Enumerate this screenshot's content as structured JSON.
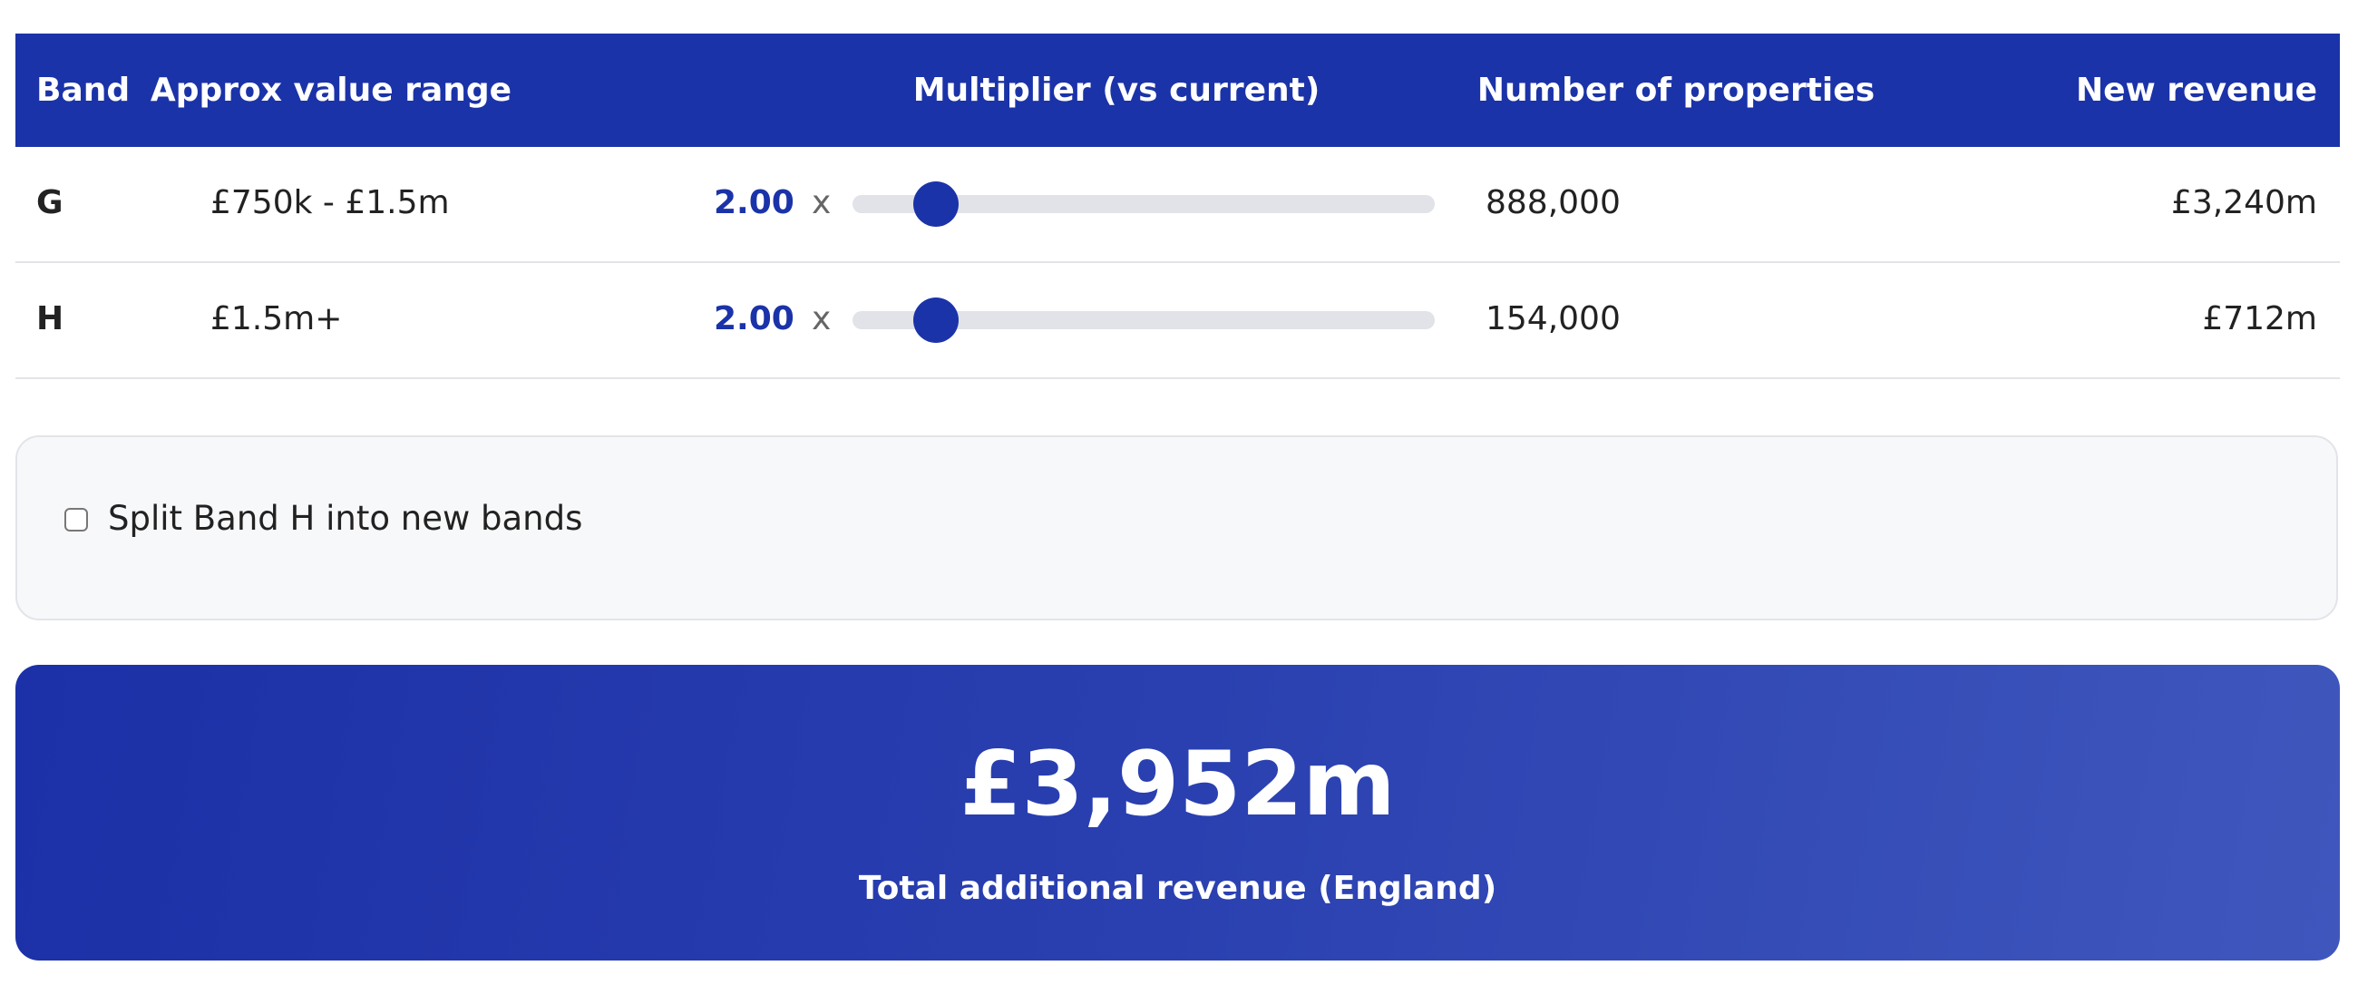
{
  "table": {
    "headers": {
      "band": "Band",
      "range": "Approx value range",
      "multiplier": "Multiplier (vs current)",
      "properties": "Number of properties",
      "revenue": "New revenue"
    },
    "rows": [
      {
        "band": "G",
        "range": "£750k - £1.5m",
        "multiplier": "2.00",
        "x": "x",
        "slider_fraction": 0.143,
        "properties": "888,000",
        "revenue": "£3,240m"
      },
      {
        "band": "H",
        "range": "£1.5m+",
        "multiplier": "2.00",
        "x": "x",
        "slider_fraction": 0.143,
        "properties": "154,000",
        "revenue": "£712m"
      }
    ]
  },
  "split_option": {
    "label": "Split Band H into new bands",
    "checked": false
  },
  "total": {
    "value": "£3,952m",
    "label": "Total additional revenue (England)"
  },
  "colors": {
    "accent": "#1b33a8",
    "track": "#e1e3e8",
    "panel_bg": "#f7f8fa"
  }
}
